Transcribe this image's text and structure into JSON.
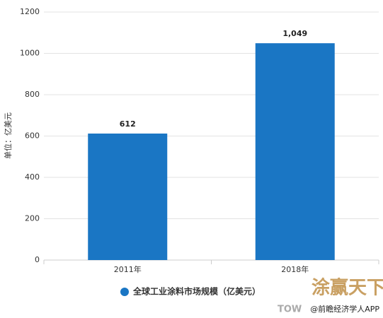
{
  "chart_data": {
    "type": "bar",
    "y_label": "单位：亿美元",
    "categories": [
      "2011年",
      "2018年"
    ],
    "series": [
      {
        "name": "全球工业涂料市场规模（亿美元）",
        "color": "#1a76c4",
        "values": [
          612,
          1049
        ],
        "value_labels": [
          "612",
          "1,049"
        ]
      }
    ],
    "ylim": [
      0,
      1200
    ],
    "yticks": [
      0,
      200,
      400,
      600,
      800,
      1000,
      1200
    ],
    "grid": true,
    "logo_text": "涂赢天下",
    "logo_subtext": "TOW",
    "source_note": "@前瞻经济学人APP"
  }
}
